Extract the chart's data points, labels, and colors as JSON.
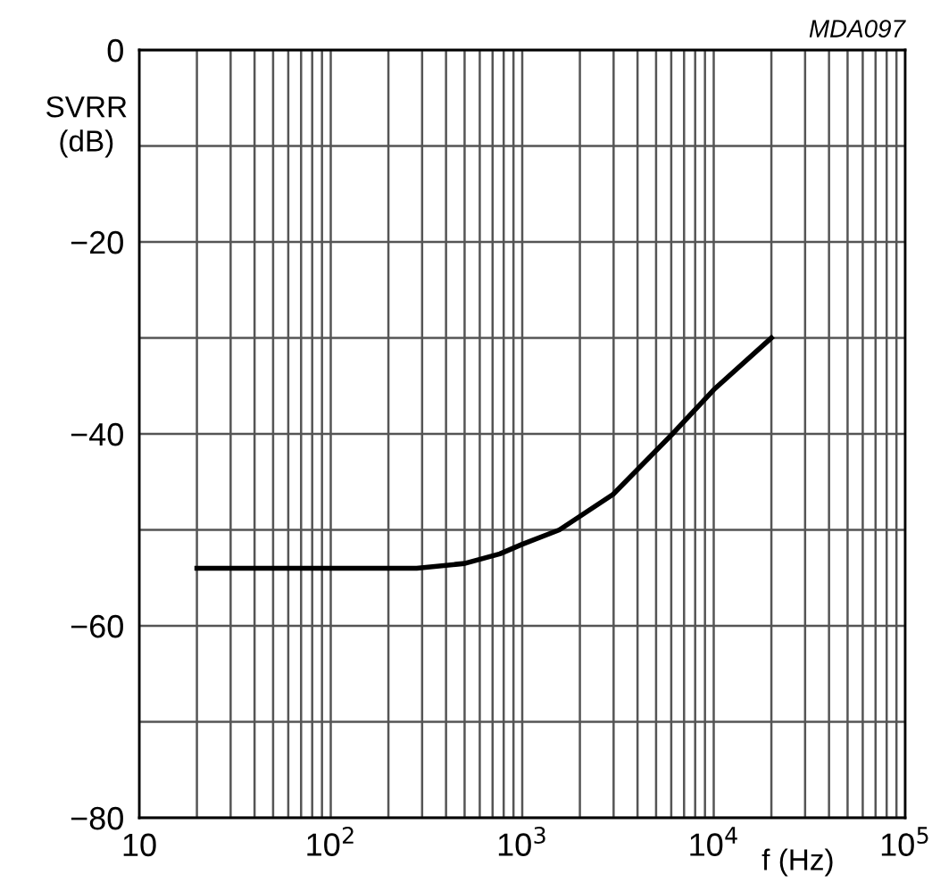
{
  "chart_data": {
    "type": "line",
    "xlabel": "f (Hz)",
    "ylabel": "SVRR\n(dB)",
    "annotations": [
      "MDA097"
    ],
    "log": "x",
    "grid": true,
    "marker": "none",
    "line_style": "solid",
    "x": [
      20,
      100,
      281,
      500,
      764,
      1000,
      1563,
      2980,
      6090,
      10000,
      20000
    ],
    "series": [
      {
        "color": "#000000",
        "values": [
          -54,
          -54,
          -54,
          -53.5,
          -52.5,
          -51.5,
          -50,
          -46.3,
          -40,
          -35.4,
          -30
        ]
      }
    ],
    "xlim": [
      10,
      100000
    ],
    "ylim": [
      -80,
      0
    ],
    "xticks": [
      {
        "value": 10,
        "label": "10"
      },
      {
        "value": 20,
        "label": null
      },
      {
        "value": 30,
        "label": null
      },
      {
        "value": 40,
        "label": null
      },
      {
        "value": 50,
        "label": null
      },
      {
        "value": 60,
        "label": null
      },
      {
        "value": 70,
        "label": null
      },
      {
        "value": 80,
        "label": null
      },
      {
        "value": 90,
        "label": null
      },
      {
        "value": 100,
        "label": "10$^{2}$"
      },
      {
        "value": 200,
        "label": null
      },
      {
        "value": 300,
        "label": null
      },
      {
        "value": 400,
        "label": null
      },
      {
        "value": 500,
        "label": null
      },
      {
        "value": 600,
        "label": null
      },
      {
        "value": 700,
        "label": null
      },
      {
        "value": 800,
        "label": null
      },
      {
        "value": 900,
        "label": null
      },
      {
        "value": 1000,
        "label": "10$^{3}$"
      },
      {
        "value": 2000,
        "label": null
      },
      {
        "value": 3000,
        "label": null
      },
      {
        "value": 4000,
        "label": null
      },
      {
        "value": 5000,
        "label": null
      },
      {
        "value": 6000,
        "label": null
      },
      {
        "value": 7000,
        "label": null
      },
      {
        "value": 8000,
        "label": null
      },
      {
        "value": 9000,
        "label": null
      },
      {
        "value": 10000,
        "label": "10$^{4}$"
      },
      {
        "value": 20000,
        "label": null
      },
      {
        "value": 30000,
        "label": null
      },
      {
        "value": 40000,
        "label": null
      },
      {
        "value": 50000,
        "label": null
      },
      {
        "value": 60000,
        "label": null
      },
      {
        "value": 70000,
        "label": null
      },
      {
        "value": 80000,
        "label": null
      },
      {
        "value": 90000,
        "label": null
      },
      {
        "value": 100000,
        "label": "10$^{5}$"
      }
    ],
    "yticks": [
      {
        "value": -80,
        "label": "−80"
      },
      {
        "value": -70,
        "label": null
      },
      {
        "value": -60,
        "label": "−60"
      },
      {
        "value": -50,
        "label": null
      },
      {
        "value": -40,
        "label": "−40"
      },
      {
        "value": -30,
        "label": null
      },
      {
        "value": -20,
        "label": "−20"
      },
      {
        "value": -10,
        "label": null
      },
      0
    ]
  }
}
